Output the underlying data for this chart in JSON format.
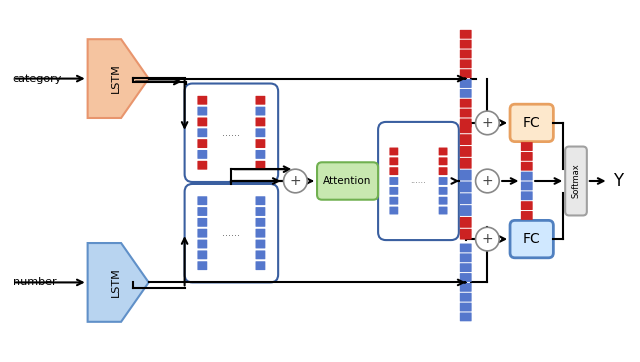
{
  "bg_color": "#ffffff",
  "lstm_cat_color": "#f5c4a0",
  "lstm_cat_edge": "#e8956d",
  "lstm_num_color": "#b8d4f0",
  "lstm_num_edge": "#6090c8",
  "enc_edge": "#3a5fa0",
  "att_color": "#c8e8b0",
  "att_edge": "#70b050",
  "fc_top_color": "#fde8cc",
  "fc_top_edge": "#e8a060",
  "fc_bot_color": "#d0e8ff",
  "fc_bot_edge": "#5080c0",
  "sm_color": "#e8e8e8",
  "sm_edge": "#a0a0a0",
  "red_color": "#cc2222",
  "blue_color": "#5577cc",
  "cat_label": "category",
  "num_label": "number",
  "Y_label": "Y",
  "lstm_label": "LSTM",
  "att_label": "Attention",
  "fc_label": "FC",
  "sm_label": "Softmax"
}
